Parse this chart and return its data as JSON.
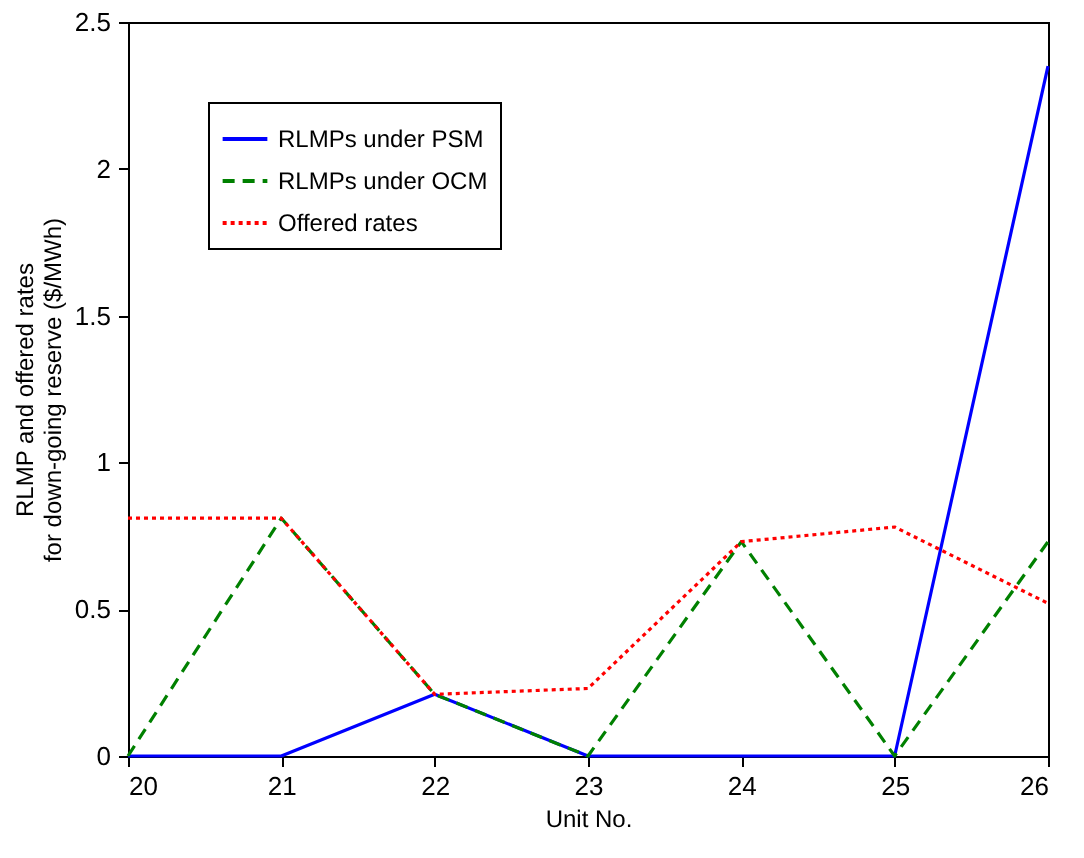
{
  "chart_data": {
    "type": "line",
    "xlabel": "Unit No.",
    "ylabel": "RLMP and offered rates\nfor down-going reserve ($/MWh)",
    "x": [
      20,
      21,
      22,
      23,
      24,
      25,
      26
    ],
    "series": [
      {
        "name": "RLMPs under PSM",
        "color": "#0000ff",
        "line_style": "solid",
        "values": [
          0,
          0,
          0.21,
          0,
          0,
          0,
          2.35
        ]
      },
      {
        "name": "RLMPs under OCM",
        "color": "#008000",
        "line_style": "dashed",
        "values": [
          0,
          0.81,
          0.21,
          0,
          0.73,
          0,
          0.73
        ]
      },
      {
        "name": "Offered rates",
        "color": "#ff0000",
        "line_style": "dotted",
        "values": [
          0.81,
          0.81,
          0.21,
          0.23,
          0.73,
          0.78,
          0.52
        ]
      }
    ],
    "xlim": [
      20,
      26
    ],
    "xticks": [
      20,
      21,
      22,
      23,
      24,
      25,
      26
    ],
    "ylim": [
      0,
      2.5
    ],
    "yticks": [
      0,
      0.5,
      1,
      1.5,
      2,
      2.5
    ],
    "grid": false,
    "legend": "top left",
    "marker": "none"
  }
}
